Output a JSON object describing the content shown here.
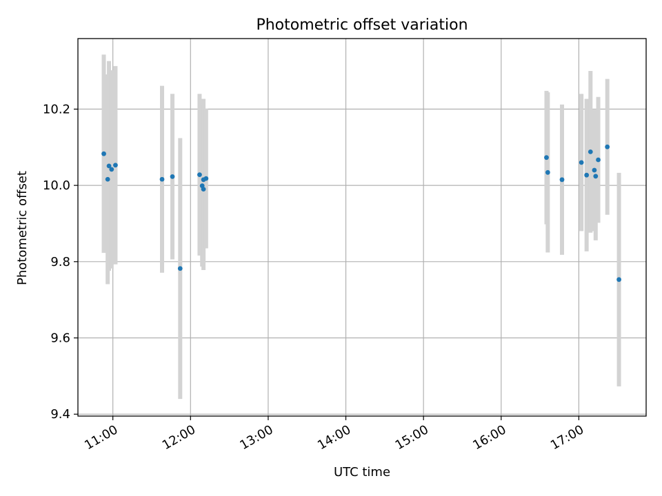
{
  "chart_data": {
    "type": "scatter",
    "title": "Photometric offset variation",
    "xlabel": "UTC time",
    "ylabel": "Photometric offset",
    "xlim": [
      "10:33",
      "17:52"
    ],
    "ylim": [
      9.395,
      10.385
    ],
    "x_ticks": [
      "11:00",
      "12:00",
      "13:00",
      "14:00",
      "15:00",
      "16:00",
      "17:00"
    ],
    "y_ticks": [
      "9.4",
      "9.6",
      "9.8",
      "10.0",
      "10.2"
    ],
    "grid": true,
    "colors": {
      "point": "#1f77b4",
      "errorbar": "#d3d3d3",
      "grid": "#b0b0b0"
    },
    "series": [
      {
        "points": [
          {
            "x": "10:53",
            "y": 10.083,
            "err": 0.26
          },
          {
            "x": "10:56",
            "y": 10.016,
            "err": 0.275
          },
          {
            "x": "10:57",
            "y": 10.051,
            "err": 0.275
          },
          {
            "x": "10:59",
            "y": 10.042,
            "err": 0.26
          },
          {
            "x": "11:02",
            "y": 10.053,
            "err": 0.26
          },
          {
            "x": "11:38",
            "y": 10.016,
            "err": 0.245
          },
          {
            "x": "11:46",
            "y": 10.023,
            "err": 0.217
          },
          {
            "x": "11:52",
            "y": 9.782,
            "err": 0.342
          },
          {
            "x": "12:07",
            "y": 10.028,
            "err": 0.212
          },
          {
            "x": "12:09",
            "y": 9.999,
            "err": 0.212
          },
          {
            "x": "12:10",
            "y": 9.99,
            "err": 0.212
          },
          {
            "x": "12:10",
            "y": 10.015,
            "err": 0.212
          },
          {
            "x": "12:12",
            "y": 10.018,
            "err": 0.183
          },
          {
            "x": "16:35",
            "y": 10.073,
            "err": 0.175
          },
          {
            "x": "16:36",
            "y": 10.034,
            "err": 0.21
          },
          {
            "x": "16:47",
            "y": 10.015,
            "err": 0.197
          },
          {
            "x": "17:02",
            "y": 10.06,
            "err": 0.18
          },
          {
            "x": "17:06",
            "y": 10.027,
            "err": 0.2
          },
          {
            "x": "17:09",
            "y": 10.088,
            "err": 0.212
          },
          {
            "x": "17:12",
            "y": 10.04,
            "err": 0.16
          },
          {
            "x": "17:13",
            "y": 10.024,
            "err": 0.168
          },
          {
            "x": "17:15",
            "y": 10.067,
            "err": 0.165
          },
          {
            "x": "17:22",
            "y": 10.101,
            "err": 0.178
          },
          {
            "x": "17:31",
            "y": 9.753,
            "err": 0.28
          }
        ]
      }
    ]
  }
}
